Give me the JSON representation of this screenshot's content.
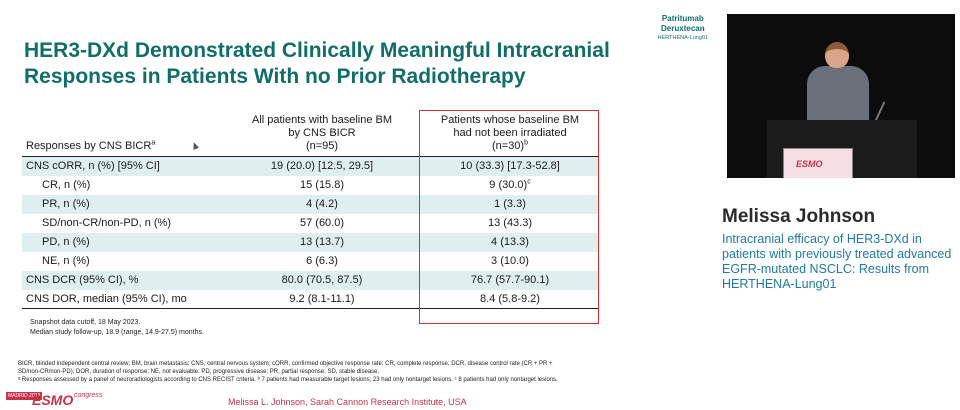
{
  "brand": {
    "line1": "Patritumab",
    "line2": "Deruxtecan",
    "line3": "HERTHENA-Lung01"
  },
  "title": {
    "line1": "HER3-DXd Demonstrated Clinically Meaningful Intracranial",
    "line2": "Responses in Patients With no Prior Radiotherapy"
  },
  "table": {
    "header": {
      "col0": "Responses by CNS BICR",
      "col0_sup": "a",
      "col1_l1": "All patients with baseline BM",
      "col1_l2": "by CNS BICR",
      "col1_l3": "(n=95)",
      "col2_l1": "Patients whose baseline BM",
      "col2_l2": "had not been irradiated",
      "col2_l3": "(n=30)",
      "col2_sup": "b"
    },
    "rows": [
      {
        "label": "CNS cORR, n (%) [95% CI]",
        "v1": "19 (20.0) [12.5, 29.5]",
        "v2": "10 (33.3) [17.3-52.8]",
        "v2_sup": ""
      },
      {
        "label": "CR, n (%)",
        "v1": "15 (15.8)",
        "v2": "9 (30.0)",
        "v2_sup": "c"
      },
      {
        "label": "PR, n (%)",
        "v1": "4 (4.2)",
        "v2": "1 (3.3)",
        "v2_sup": ""
      },
      {
        "label": "SD/non-CR/non-PD, n (%)",
        "v1": "57 (60.0)",
        "v2": "13 (43.3)",
        "v2_sup": ""
      },
      {
        "label": "PD, n (%)",
        "v1": "13 (13.7)",
        "v2": "4 (13.3)",
        "v2_sup": ""
      },
      {
        "label": "NE, n (%)",
        "v1": "6 (6.3)",
        "v2": "3 (10.0)",
        "v2_sup": ""
      },
      {
        "label": "CNS DCR (95% CI), %",
        "v1": "80.0 (70.5, 87.5)",
        "v2": "76.7 (57.7-90.1)",
        "v2_sup": ""
      },
      {
        "label": "CNS DOR, median (95% CI), mo",
        "v1": "9.2 (8.1-11.1)",
        "v2": "8.4 (5.8-9.2)",
        "v2_sup": ""
      }
    ]
  },
  "snapshot": {
    "line1": "Snapshot data cutoff, 18 May 2023.",
    "line2": "Median study follow-up, 18.9 (range, 14.9-27.5) months."
  },
  "footnotes": {
    "line1": "BICR, blinded independent central review; BM, brain metastasis; CNS, central nervous system; cORR, confirmed objective response rate; CR, complete response; DCR, disease control rate (CR + PR +",
    "line2": "SD/non-CR/non-PD); DOR, duration of response; NE, not evaluable; PD, progressive disease; PR, partial response; SD, stable disease.",
    "line3": "ᵃ Responses assessed by a panel of neuroradiologists according to CNS RECIST criteria. ᵇ 7 patients had measurable target lesions; 23 had only nontarget lesions. ᶜ 8 patients had only nontarget lesions."
  },
  "logo": {
    "city": "MADRID 2023",
    "name": "ESMO",
    "suffix": "congress"
  },
  "presenter_credit": "Melissa L. Johnson, Sarah Cannon Research Institute, USA",
  "video": {
    "screen_text": "ESMO"
  },
  "speaker": {
    "name": "Melissa Johnson",
    "talk_title": "Intracranial efficacy of HER3-DXd in patients with previously treated advanced EGFR-mutated NSCLC: Results from HERTHENA-Lung01"
  },
  "colors": {
    "accent_teal": "#0f6e6a",
    "highlight_red": "#d32f2f",
    "row_shade": "#dfeff0",
    "speaker_blue": "#1e7aa6",
    "esmo_red": "#c8324b"
  }
}
